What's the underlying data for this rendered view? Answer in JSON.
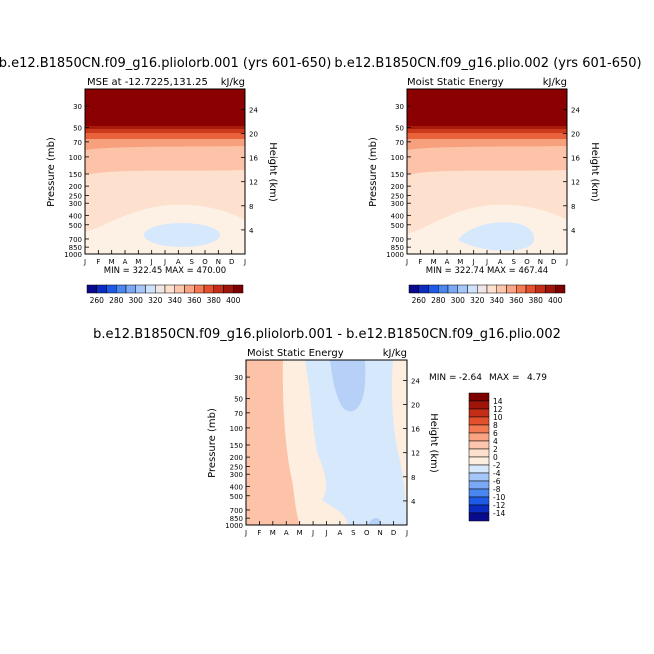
{
  "chart_data": [
    {
      "type": "heatmap",
      "id": "left",
      "title": "b.e12.B1850CN.f09_g16.pliolorb.001 (yrs 601-650)",
      "subtitle_left": "MSE at -12.7225,131.25",
      "subtitle_right": "kJ/kg",
      "ylabel": "Pressure (mb)",
      "ylabel_right": "Height (km)",
      "x_ticks": [
        "J",
        "F",
        "M",
        "A",
        "M",
        "J",
        "J",
        "A",
        "S",
        "O",
        "N",
        "D",
        "J"
      ],
      "pressure_ticks": [
        "30",
        "50",
        "70",
        "100",
        "150",
        "200",
        "250",
        "300",
        "400",
        "500",
        "700",
        "850",
        "1000"
      ],
      "height_ticks": [
        "4",
        "8",
        "12",
        "16",
        "20",
        "24"
      ],
      "ylim_mb": [
        1000,
        20
      ],
      "stats": "MIN = 322.45  MAX = 470.00",
      "min": 322.45,
      "max": 470.0
    },
    {
      "type": "heatmap",
      "id": "right",
      "title": "b.e12.B1850CN.f09_g16.plio.002 (yrs 601-650)",
      "subtitle_left": "Moist Static Energy",
      "subtitle_right": "kJ/kg",
      "ylabel": "Pressure (mb)",
      "ylabel_right": "Height (km)",
      "x_ticks": [
        "J",
        "F",
        "M",
        "A",
        "M",
        "J",
        "J",
        "A",
        "S",
        "O",
        "N",
        "D",
        "J"
      ],
      "pressure_ticks": [
        "30",
        "50",
        "70",
        "100",
        "150",
        "200",
        "250",
        "300",
        "400",
        "500",
        "700",
        "850",
        "1000"
      ],
      "height_ticks": [
        "4",
        "8",
        "12",
        "16",
        "20",
        "24"
      ],
      "ylim_mb": [
        1000,
        20
      ],
      "stats": "MIN = 322.74  MAX = 467.44",
      "min": 322.74,
      "max": 467.44
    },
    {
      "type": "heatmap",
      "id": "diff",
      "title": "b.e12.B1850CN.f09_g16.pliolorb.001 - b.e12.B1850CN.f09_g16.plio.002",
      "subtitle_left": "Moist Static Energy",
      "subtitle_right": "kJ/kg",
      "ylabel": "Pressure (mb)",
      "ylabel_right": "Height (km)",
      "x_ticks": [
        "J",
        "F",
        "M",
        "A",
        "M",
        "J",
        "J",
        "A",
        "S",
        "O",
        "N",
        "D",
        "J"
      ],
      "pressure_ticks": [
        "30",
        "50",
        "70",
        "100",
        "150",
        "200",
        "250",
        "300",
        "400",
        "500",
        "700",
        "850",
        "1000"
      ],
      "height_ticks": [
        "4",
        "8",
        "12",
        "16",
        "20",
        "24"
      ],
      "ylim_mb": [
        1000,
        20
      ],
      "stats_min_label": "MIN =",
      "stats_min_value": "-2.64",
      "stats_max_label": "MAX =",
      "stats_max_value": "4.79",
      "min": -2.64,
      "max": 4.79
    }
  ],
  "colorbar_top": {
    "labels": [
      "260",
      "280",
      "300",
      "320",
      "340",
      "360",
      "380",
      "400"
    ],
    "colors": [
      "#0a0a8c",
      "#0b2cc0",
      "#1f5ae6",
      "#4a86f0",
      "#7aa8f5",
      "#a6c6fa",
      "#cfe2fb",
      "#f0e6e6",
      "#fde1ce",
      "#fcc6ad",
      "#f9a583",
      "#f47a54",
      "#e3502d",
      "#c42e18",
      "#9f1509",
      "#7d0000"
    ]
  },
  "colorbar_diff": {
    "labels": [
      "14",
      "12",
      "10",
      "8",
      "6",
      "4",
      "2",
      "0",
      "-2",
      "-4",
      "-6",
      "-8",
      "-10",
      "-12",
      "-14"
    ],
    "colors": [
      "#7d0000",
      "#9f1509",
      "#c42e18",
      "#e3502d",
      "#f47a54",
      "#f9a583",
      "#fcc6ad",
      "#fde1ce",
      "#fdeedf",
      "#d6e8fb",
      "#a6c6fa",
      "#7aa8f5",
      "#4a86f0",
      "#1f5ae6",
      "#0b2cc0",
      "#0a0a8c"
    ]
  },
  "colors": {
    "dark_red": "#8b0000",
    "red2": "#a81a0a",
    "red3": "#cc3a1c",
    "red4": "#e8623b",
    "salmon": "#f7a07e",
    "light_salmon": "#fcc3a8",
    "peach": "#fde1ce",
    "cream": "#fdf1e6",
    "light_blue": "#d6e8fb",
    "blue2": "#b7d0f7"
  }
}
